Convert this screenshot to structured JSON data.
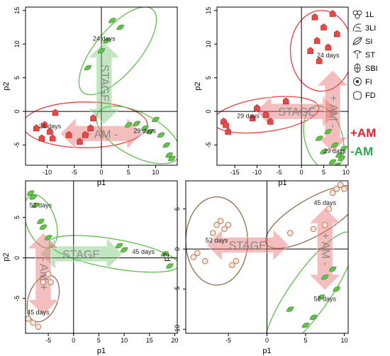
{
  "colors": {
    "am_plus": "#e8202a",
    "am_minus": "#29a844",
    "ellipse_red": "#e84040",
    "ellipse_green": "#5cc04a",
    "ellipse_brown": "#9a6a4a",
    "point_red": "#e84848",
    "point_green": "#62c24a",
    "point_brown": "#b87a5a"
  },
  "legend": {
    "items": [
      {
        "label": "1L",
        "icon": "leaf-cluster-icon"
      },
      {
        "label": "3LI",
        "icon": "three-leaf-icon"
      },
      {
        "label": "SI",
        "icon": "single-leaf-icon"
      },
      {
        "label": "ST",
        "icon": "stem-icon"
      },
      {
        "label": "SBI",
        "icon": "small-bud-icon"
      },
      {
        "label": "FI",
        "icon": "flower-icon"
      },
      {
        "label": "FD",
        "icon": "fruit-icon"
      }
    ],
    "am_plus": "+AM",
    "am_minus": "-AM"
  },
  "chart_data": [
    {
      "type": "scatter",
      "xlabel": "p1",
      "ylabel": "p2",
      "xlim": [
        -14,
        14
      ],
      "ylim": [
        -8,
        15.5
      ],
      "xticks": [
        -10,
        -5,
        0,
        5,
        10
      ],
      "yticks": [
        -5,
        0,
        5,
        10,
        15
      ],
      "annotations": [
        {
          "text": "24 days",
          "x": 0.5,
          "y": 10.5
        },
        {
          "text": "24 days",
          "x": -9.5,
          "y": -2.5
        },
        {
          "text": "29 days",
          "x": 8,
          "y": -3.2
        }
      ],
      "arrows": [
        {
          "text": "STAGE",
          "axis": "v",
          "color": "green",
          "x": 0.5,
          "y": 4.2
        },
        {
          "text": "+ AM -",
          "axis": "h",
          "color": "red",
          "x": 0,
          "y": -3.3
        }
      ],
      "ellipses": [
        {
          "color": "red",
          "cx": -3,
          "cy": -2,
          "rx": 11.5,
          "ry": 3.4,
          "angle": 0
        },
        {
          "color": "green",
          "cx": 3,
          "cy": 9,
          "rx": 10,
          "ry": 3.3,
          "angle": 50
        },
        {
          "color": "green",
          "cx": 6.8,
          "cy": -3.5,
          "rx": 8.5,
          "ry": 3.2,
          "angle": -28
        }
      ],
      "points": [
        {
          "series": "red",
          "x": [
            -12,
            -11,
            -10.5,
            -9.5,
            -9,
            -8.5,
            -6,
            -4,
            -3,
            -2,
            -1.5
          ],
          "y": [
            -2.5,
            -4,
            -2,
            -3,
            -4,
            -0.2,
            -3.5,
            -4.5,
            -3.5,
            -2.5,
            -1
          ]
        },
        {
          "series": "green",
          "x": [
            -2.5,
            0,
            1,
            2,
            3.5,
            5,
            6.5,
            8,
            9,
            10,
            11,
            12,
            12.5,
            13
          ],
          "y": [
            6.5,
            9,
            10.5,
            13.5,
            12.5,
            -2,
            -1.8,
            -2.5,
            -3,
            -1.2,
            -3.5,
            -5,
            -6.5,
            -7
          ]
        }
      ]
    },
    {
      "type": "scatter",
      "xlabel": "p1",
      "ylabel": "p2",
      "xlim": [
        -19,
        10.5
      ],
      "ylim": [
        -8,
        15.5
      ],
      "xticks": [
        -15,
        -10,
        -5,
        0,
        5,
        10
      ],
      "yticks": [
        -5,
        0,
        5,
        10,
        15
      ],
      "annotations": [
        {
          "text": "24 days",
          "x": 6,
          "y": 8
        },
        {
          "text": "29 days",
          "x": -12,
          "y": -1
        },
        {
          "text": "29 days",
          "x": 7.5,
          "y": -6.2
        }
      ],
      "arrows": [
        {
          "text": "STAGE",
          "axis": "h",
          "color": "red",
          "x": -1,
          "y": 0
        },
        {
          "text": "+ AM -",
          "axis": "v",
          "color": "red",
          "x": 7,
          "y": 0
        }
      ],
      "ellipses": [
        {
          "color": "red",
          "cx": 4.5,
          "cy": 9,
          "rx": 7,
          "ry": 6,
          "angle": 0
        },
        {
          "color": "red",
          "cx": -8,
          "cy": -0.5,
          "rx": 12,
          "ry": 2.5,
          "angle": 8
        },
        {
          "color": "green",
          "cx": 5,
          "cy": -4,
          "rx": 7.5,
          "ry": 2.8,
          "angle": -75
        }
      ],
      "points": [
        {
          "series": "red",
          "x": [
            -17.5,
            -17,
            -16.5,
            -11,
            -10,
            -8,
            -7,
            -3.5,
            2,
            3,
            3.5,
            4,
            5,
            6,
            7,
            8
          ],
          "y": [
            -1.5,
            -2,
            -3,
            -1,
            0.5,
            -0.5,
            -1.5,
            1.5,
            9,
            14,
            10.5,
            7.5,
            12.5,
            9.5,
            14.5,
            11.5
          ]
        },
        {
          "series": "green",
          "x": [
            4,
            5,
            6,
            7,
            7.5,
            8,
            8.5,
            9,
            9.5,
            10
          ],
          "y": [
            -4,
            -6,
            -3,
            -7.5,
            -5,
            -8,
            -6.5,
            -7,
            -5.5,
            -8.5
          ]
        }
      ]
    },
    {
      "type": "scatter",
      "xlabel": "p1",
      "ylabel": "p2",
      "xlim": [
        -9.5,
        20.5
      ],
      "ylim": [
        -9.3,
        9.5
      ],
      "xticks": [
        -5,
        0,
        5,
        10,
        15,
        20
      ],
      "yticks": [
        -5,
        0,
        5
      ],
      "annotations": [
        {
          "text": "52 days",
          "x": -6.5,
          "y": 6.2
        },
        {
          "text": "45 days",
          "x": 13.8,
          "y": 0.5
        },
        {
          "text": "45 days",
          "x": -7,
          "y": -7
        }
      ],
      "arrows": [
        {
          "text": "STAGE",
          "axis": "h",
          "color": "green",
          "x": 1.5,
          "y": 0.5
        },
        {
          "text": "- AM +",
          "axis": "v",
          "color": "red",
          "x": -6,
          "y": -2
        }
      ],
      "ellipses": [
        {
          "color": "green",
          "cx": -6.5,
          "cy": 4.5,
          "rx": 5.5,
          "ry": 1.8,
          "angle": -70
        },
        {
          "color": "green",
          "cx": 8,
          "cy": 0.5,
          "rx": 13,
          "ry": 1.8,
          "angle": -10
        },
        {
          "color": "brown",
          "cx": -6,
          "cy": -5,
          "rx": 4.8,
          "ry": 1.8,
          "angle": 70
        }
      ],
      "points": [
        {
          "series": "green",
          "x": [
            -8.5,
            -8,
            -7.5,
            -6.5,
            -6,
            -5,
            9,
            10,
            18,
            19
          ],
          "y": [
            8,
            7.5,
            6.5,
            4.5,
            3.8,
            2.5,
            1.5,
            1,
            0.5,
            -1
          ]
        },
        {
          "series": "brown",
          "x": [
            -9,
            -8,
            -7,
            -6,
            -5,
            -4.5
          ],
          "y": [
            -7.5,
            -8,
            -8.5,
            -3,
            -2,
            -3
          ]
        }
      ]
    },
    {
      "type": "scatter",
      "xlabel": "p1",
      "ylabel": "p2",
      "xlim": [
        -10.5,
        10.5
      ],
      "ylim": [
        -10.5,
        8.5
      ],
      "xticks": [
        -5,
        0,
        5,
        10
      ],
      "yticks": [
        -10,
        -5,
        0,
        5
      ],
      "annotations": [
        {
          "text": "52 days",
          "x": -6.5,
          "y": 0.8
        },
        {
          "text": "45 days",
          "x": 7.5,
          "y": 5.5
        },
        {
          "text": "52 days",
          "x": 7.5,
          "y": -6.5
        }
      ],
      "arrows": [
        {
          "text": "STAGE",
          "axis": "h",
          "color": "red",
          "x": -2.5,
          "y": 0.5
        },
        {
          "text": "+ AM -",
          "axis": "v",
          "color": "red",
          "x": 7.5,
          "y": 0
        }
      ],
      "ellipses": [
        {
          "color": "brown",
          "cx": -6.5,
          "cy": 1,
          "rx": 4,
          "ry": 5.5,
          "angle": 0
        },
        {
          "color": "brown",
          "cx": 6,
          "cy": 4,
          "rx": 7,
          "ry": 2.3,
          "angle": 30
        },
        {
          "color": "green",
          "cx": 5.5,
          "cy": -5.5,
          "rx": 9.5,
          "ry": 2.5,
          "angle": 55
        }
      ],
      "points": [
        {
          "series": "brown",
          "x": [
            -9.5,
            -9,
            -8,
            -7,
            -6.5,
            -6,
            -5.5,
            -5,
            -4.5,
            -4
          ],
          "y": [
            -1,
            -0.5,
            -1.5,
            2,
            3,
            3.5,
            2.5,
            3,
            -2,
            -1.5
          ]
        },
        {
          "series": "brown",
          "x": [
            3,
            6,
            7.5,
            8,
            8.5,
            9,
            9.5,
            10
          ],
          "y": [
            2,
            2.5,
            3,
            5,
            7,
            7.5,
            8,
            7.5
          ]
        },
        {
          "series": "green",
          "x": [
            3,
            5,
            6,
            7,
            7.5,
            8.5,
            9
          ],
          "y": [
            -7.5,
            -9.5,
            -8.5,
            -6,
            -3.5,
            -2.5,
            -5
          ]
        }
      ]
    }
  ]
}
